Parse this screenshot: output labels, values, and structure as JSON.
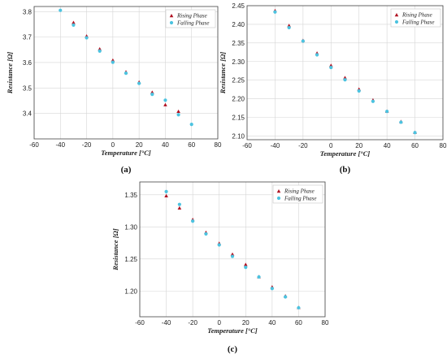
{
  "colors": {
    "rising": "#b01020",
    "falling": "#4cc3e0",
    "grid": "#d6d6d6",
    "axis": "#444444"
  },
  "chart_data": [
    {
      "type": "scatter",
      "panel_label": "(a)",
      "xlabel": "Temperature [°C]",
      "ylabel": "Resistance [Ω]",
      "xlim": [
        -60,
        80
      ],
      "ylim": [
        3.3,
        3.82
      ],
      "xticks": [
        -60,
        -40,
        -20,
        0,
        20,
        40,
        60,
        80
      ],
      "yticks": [
        3.4,
        3.5,
        3.6,
        3.7,
        3.8
      ],
      "grid": true,
      "legend": "top-right",
      "series": [
        {
          "name": "Rising Phase",
          "marker": "triangle",
          "x": [
            -30,
            -20,
            -10,
            0,
            10,
            20,
            30,
            40,
            50
          ],
          "y": [
            3.756,
            3.703,
            3.652,
            3.608,
            3.562,
            3.522,
            3.482,
            3.433,
            3.407
          ]
        },
        {
          "name": "Falling Phase",
          "marker": "dot",
          "x": [
            -40,
            -30,
            -20,
            -10,
            0,
            10,
            20,
            30,
            40,
            50,
            60
          ],
          "y": [
            3.805,
            3.747,
            3.697,
            3.645,
            3.601,
            3.558,
            3.518,
            3.475,
            3.452,
            3.395,
            3.357
          ]
        }
      ]
    },
    {
      "type": "scatter",
      "panel_label": "(b)",
      "xlabel": "Temperature [°C]",
      "ylabel": "Resistance [Ω]",
      "xlim": [
        -60,
        80
      ],
      "ylim": [
        2.09,
        2.45
      ],
      "xticks": [
        -60,
        -40,
        -20,
        0,
        20,
        40,
        60,
        80
      ],
      "yticks": [
        2.1,
        2.15,
        2.2,
        2.25,
        2.3,
        2.35,
        2.4,
        2.45
      ],
      "grid": true,
      "legend": "top-right",
      "series": [
        {
          "name": "Rising Phase",
          "marker": "triangle",
          "x": [
            -40,
            -30,
            -20,
            -10,
            0,
            10,
            20,
            30,
            40,
            50,
            60
          ],
          "y": [
            2.436,
            2.396,
            2.356,
            2.322,
            2.289,
            2.256,
            2.225,
            2.196,
            2.166,
            2.138,
            2.109
          ]
        },
        {
          "name": "Falling Phase",
          "marker": "dot",
          "x": [
            -40,
            -30,
            -20,
            -10,
            0,
            10,
            20,
            30,
            40,
            50,
            60
          ],
          "y": [
            2.433,
            2.391,
            2.355,
            2.318,
            2.284,
            2.251,
            2.221,
            2.193,
            2.166,
            2.137,
            2.109
          ]
        }
      ]
    },
    {
      "type": "scatter",
      "panel_label": "(c)",
      "xlabel": "Temperature [°C]",
      "ylabel": "Resistance [Ω]",
      "xlim": [
        -60,
        80
      ],
      "ylim": [
        1.16,
        1.37
      ],
      "xticks": [
        -60,
        -40,
        -20,
        0,
        20,
        40,
        60,
        80
      ],
      "yticks": [
        1.2,
        1.25,
        1.3,
        1.35
      ],
      "grid": true,
      "legend": "top-right",
      "series": [
        {
          "name": "Rising Phase",
          "marker": "triangle",
          "x": [
            -40,
            -30,
            -20,
            -10,
            0,
            10,
            20,
            30,
            40,
            50,
            60
          ],
          "y": [
            1.348,
            1.329,
            1.311,
            1.291,
            1.274,
            1.257,
            1.241,
            1.222,
            1.206,
            1.192,
            1.174
          ]
        },
        {
          "name": "Falling Phase",
          "marker": "dot",
          "x": [
            -40,
            -30,
            -20,
            -10,
            0,
            10,
            20,
            30,
            40,
            50,
            60
          ],
          "y": [
            1.355,
            1.335,
            1.309,
            1.289,
            1.272,
            1.254,
            1.237,
            1.222,
            1.204,
            1.191,
            1.174
          ]
        }
      ]
    }
  ]
}
